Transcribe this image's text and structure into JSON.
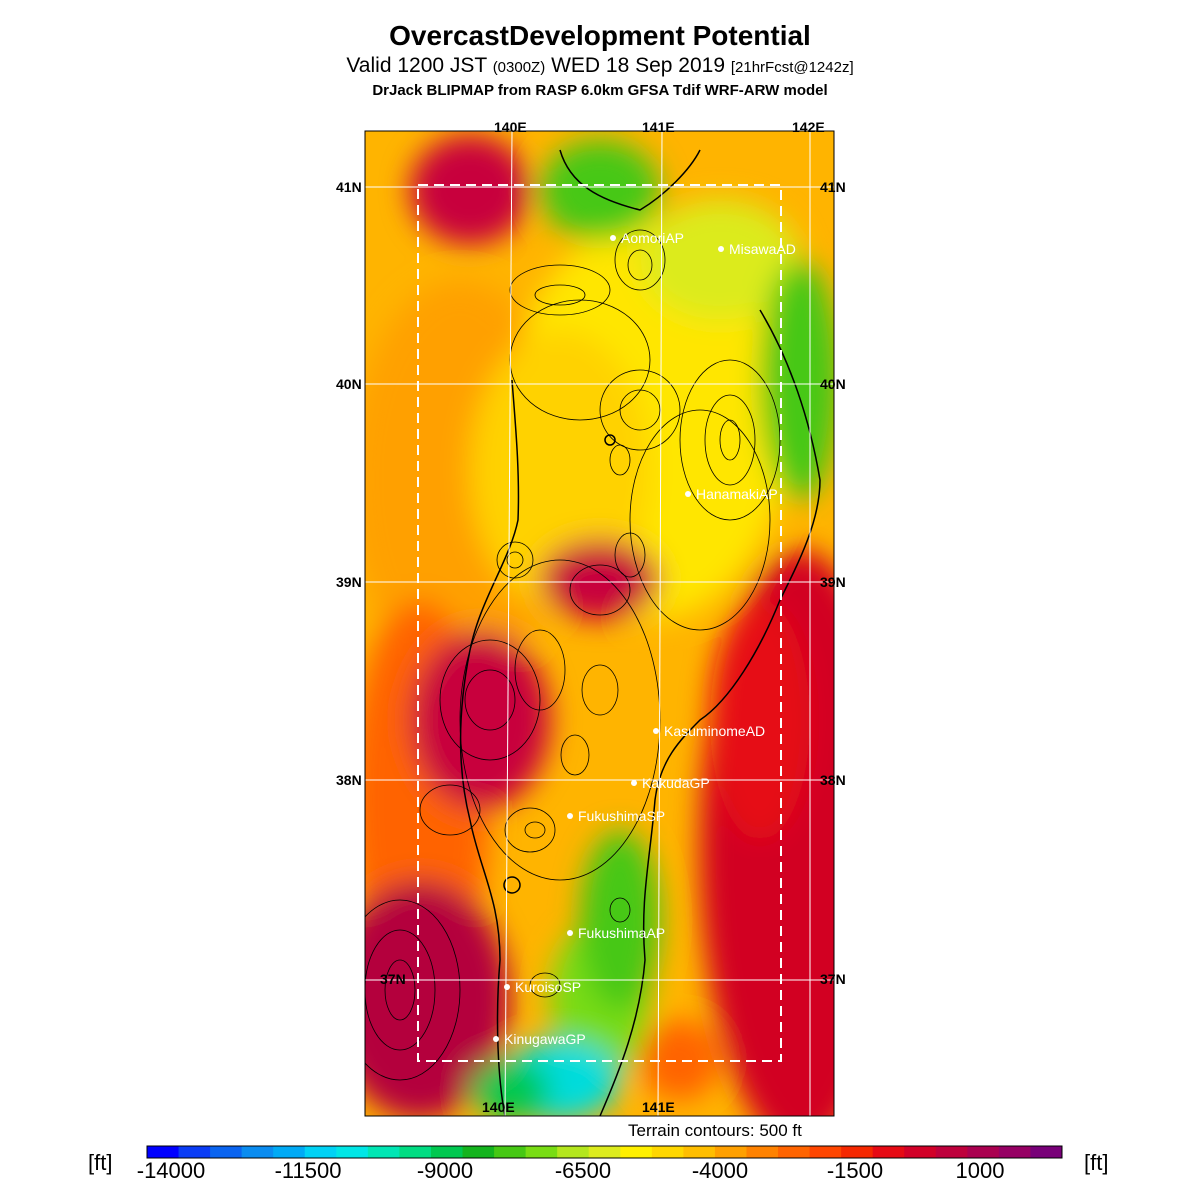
{
  "header": {
    "title": "OvercastDevelopment Potential",
    "subtitle_main": "Valid 1200 JST",
    "subtitle_z": "(0300Z)",
    "subtitle_date": "WED 18 Sep 2019",
    "subtitle_fcst": "[21hrFcst@1242z]",
    "model": "DrJack BLIPMAP from RASP 6.0km GFSA Tdif WRF-ARW model"
  },
  "map": {
    "lon_labels": [
      "140E",
      "141E",
      "142E"
    ],
    "lat_labels": [
      "41N",
      "40N",
      "39N",
      "38N",
      "37N"
    ],
    "stations": [
      {
        "name": "AomoriAP"
      },
      {
        "name": "MisawaAD"
      },
      {
        "name": "HanamakiAP"
      },
      {
        "name": "KasuminomeAD"
      },
      {
        "name": "KakudaGP"
      },
      {
        "name": "FukushimaSP"
      },
      {
        "name": "FukushimaAP"
      },
      {
        "name": "KuroisoSP"
      },
      {
        "name": "KinugawaGP"
      }
    ],
    "terrain_note": "Terrain contours: 500 ft"
  },
  "colorbar": {
    "unit": "[ft]",
    "ticks": [
      "-14000",
      "-11500",
      "-9000",
      "-6500",
      "-4000",
      "-1500",
      "1000"
    ],
    "colors": [
      "#0000ff",
      "#0a3cf5",
      "#0a64f0",
      "#0a8cf0",
      "#00aaf5",
      "#00d2f5",
      "#00e6e6",
      "#00e6b4",
      "#00dc82",
      "#00c850",
      "#14b41e",
      "#46c814",
      "#78dc14",
      "#b4e61e",
      "#dceb1e",
      "#fff000",
      "#ffd700",
      "#ffbe00",
      "#ffa000",
      "#ff8200",
      "#ff6400",
      "#ff4600",
      "#f52800",
      "#e60a14",
      "#d20028",
      "#be003c",
      "#aa0050",
      "#960064",
      "#780078"
    ]
  }
}
